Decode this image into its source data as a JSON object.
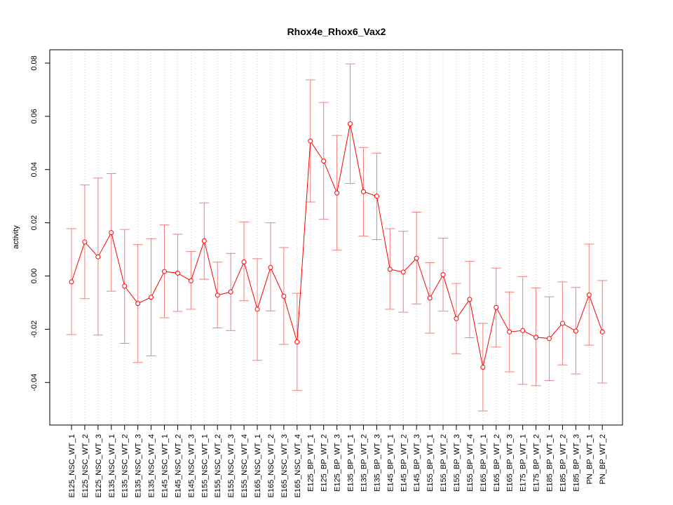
{
  "chart_data": {
    "type": "line",
    "title": "Rhox4e_Rhox6_Vax2",
    "xlabel": "",
    "ylabel": "activity",
    "ylim": [
      -0.056,
      0.085
    ],
    "yticks": [
      -0.04,
      -0.02,
      0.0,
      0.02,
      0.04,
      0.06,
      0.08
    ],
    "ytick_labels": [
      "-0.04",
      "-0.02",
      "0.00",
      "0.02",
      "0.04",
      "0.06",
      "0.08"
    ],
    "grid": true,
    "line_color": "#ff0000",
    "error_bar_color": "#f08080",
    "grid_color": "#cccccc",
    "categories": [
      "E125_NSC_WT_1",
      "E125_NSC_WT_2",
      "E125_NSC_WT_3",
      "E135_NSC_WT_1",
      "E135_NSC_WT_2",
      "E135_NSC_WT_3",
      "E135_NSC_WT_4",
      "E145_NSC_WT_1",
      "E145_NSC_WT_2",
      "E145_NSC_WT_3",
      "E155_NSC_WT_1",
      "E155_NSC_WT_2",
      "E155_NSC_WT_3",
      "E155_NSC_WT_4",
      "E165_NSC_WT_1",
      "E165_NSC_WT_2",
      "E165_NSC_WT_3",
      "E165_NSC_WT_4",
      "E125_BP_WT_1",
      "E125_BP_WT_2",
      "E125_BP_WT_3",
      "E135_BP_WT_1",
      "E135_BP_WT_2",
      "E135_BP_WT_3",
      "E145_BP_WT_1",
      "E145_BP_WT_2",
      "E145_BP_WT_3",
      "E155_BP_WT_1",
      "E155_BP_WT_2",
      "E155_BP_WT_3",
      "E155_BP_WT_4",
      "E165_BP_WT_1",
      "E165_BP_WT_2",
      "E165_BP_WT_3",
      "E175_BP_WT_1",
      "E175_BP_WT_2",
      "E185_BP_WT_1",
      "E185_BP_WT_2",
      "E185_BP_WT_3",
      "PN_BP_WT_1",
      "PN_BP_WT_2"
    ],
    "series": [
      {
        "values": [
          -0.0022,
          0.0128,
          0.0072,
          0.0163,
          -0.0038,
          -0.0103,
          -0.008,
          0.0017,
          0.0011,
          -0.0018,
          0.0132,
          -0.0072,
          -0.006,
          0.0053,
          -0.0125,
          0.0032,
          -0.0076,
          -0.0248,
          0.0507,
          0.0432,
          0.0312,
          0.0572,
          0.0317,
          0.03,
          0.0025,
          0.0015,
          0.0067,
          -0.0083,
          0.0005,
          -0.016,
          -0.0088,
          -0.0343,
          -0.0118,
          -0.021,
          -0.0205,
          -0.023,
          -0.0235,
          -0.0178,
          -0.0207,
          -0.0071,
          -0.021
        ],
        "lower": [
          -0.022,
          -0.0085,
          -0.0222,
          -0.0057,
          -0.0253,
          -0.0325,
          -0.03,
          -0.0157,
          -0.0133,
          -0.0125,
          -0.0012,
          -0.0195,
          -0.0205,
          -0.0093,
          -0.0317,
          -0.0131,
          -0.0257,
          -0.043,
          0.0278,
          0.0213,
          0.0097,
          0.0348,
          0.015,
          0.0137,
          -0.0125,
          -0.0136,
          -0.0105,
          -0.0215,
          -0.0132,
          -0.0292,
          -0.0232,
          -0.0507,
          -0.0267,
          -0.036,
          -0.0407,
          -0.0412,
          -0.0393,
          -0.0334,
          -0.0368,
          -0.026,
          -0.0402
        ],
        "upper": [
          0.0178,
          0.0342,
          0.0368,
          0.0385,
          0.0175,
          0.0118,
          0.014,
          0.0192,
          0.0157,
          0.0092,
          0.0275,
          0.0052,
          0.0085,
          0.0203,
          0.0065,
          0.02,
          0.0107,
          -0.0065,
          0.0737,
          0.0652,
          0.0528,
          0.0797,
          0.0483,
          0.0462,
          0.0178,
          0.0168,
          0.024,
          0.005,
          0.0142,
          -0.0028,
          0.0055,
          -0.0178,
          0.003,
          -0.006,
          -0.0002,
          -0.0045,
          -0.0078,
          -0.0022,
          -0.0043,
          0.012,
          -0.0017
        ]
      }
    ]
  }
}
